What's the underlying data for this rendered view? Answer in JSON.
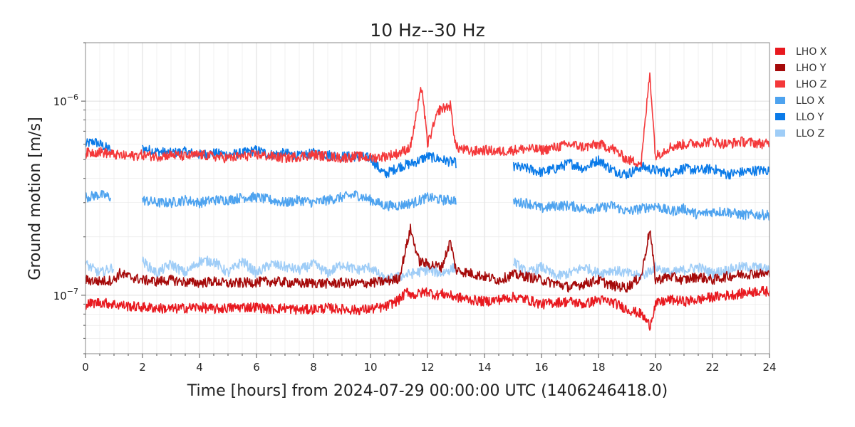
{
  "chart_data": {
    "type": "line",
    "title": "10 Hz--30 Hz",
    "xlabel": "Time [hours] from 2024-07-29 00:00:00 UTC (1406246418.0)",
    "ylabel": "Ground motion [m/s]",
    "xlim": [
      0,
      24
    ],
    "ylim": [
      5e-08,
      2e-06
    ],
    "yscale": "log",
    "grid": true,
    "legend_position": "right (outside plot, top)",
    "x_ticks": [
      "0",
      "2",
      "4",
      "6",
      "8",
      "10",
      "12",
      "14",
      "16",
      "18",
      "20",
      "22",
      "24"
    ],
    "y_ticks": [
      {
        "base": "10",
        "exp": "−6",
        "value": 1e-06
      },
      {
        "base": "10",
        "exp": "−7",
        "value": 1e-07
      }
    ],
    "series": [
      {
        "name": "LHO X",
        "color": "#e8191f",
        "x": [
          0,
          0.5,
          1,
          1.5,
          2,
          2.5,
          3,
          3.5,
          4,
          4.5,
          5,
          5.5,
          6,
          6.5,
          7,
          7.5,
          8,
          8.5,
          9,
          9.5,
          10,
          10.5,
          11,
          11.3,
          11.5,
          12,
          12.3,
          12.5,
          13,
          13.5,
          14,
          14.5,
          15,
          15.5,
          16,
          16.5,
          17,
          17.5,
          18,
          18.5,
          19,
          19.5,
          19.8,
          20,
          20.5,
          21,
          21.5,
          22,
          22.5,
          23,
          23.5,
          24
        ],
        "y": [
          9e-08,
          9.2e-08,
          9e-08,
          8.8e-08,
          8.7e-08,
          8.6e-08,
          8.5e-08,
          8.6e-08,
          8.7e-08,
          8.5e-08,
          8.6e-08,
          8.7e-08,
          8.7e-08,
          8.5e-08,
          8.6e-08,
          8.4e-08,
          8.5e-08,
          8.6e-08,
          8.5e-08,
          8.4e-08,
          8.5e-08,
          8.7e-08,
          9.5e-08,
          1.05e-07,
          1e-07,
          1.05e-07,
          1e-07,
          1.02e-07,
          9.8e-08,
          9.5e-08,
          9.3e-08,
          9.5e-08,
          9.8e-08,
          9.5e-08,
          9e-08,
          9.2e-08,
          9.3e-08,
          9e-08,
          9.5e-08,
          9.2e-08,
          8.5e-08,
          8e-08,
          7e-08,
          9e-08,
          9.5e-08,
          9.3e-08,
          9.5e-08,
          9.8e-08,
          1e-07,
          1.02e-07,
          1.05e-07,
          1.05e-07
        ]
      },
      {
        "name": "LHO Y",
        "color": "#a50a0a",
        "x": [
          0,
          0.5,
          1,
          1.2,
          1.5,
          2,
          2.5,
          3,
          3.5,
          4,
          4.5,
          5,
          5.5,
          6,
          6.5,
          7,
          7.5,
          8,
          8.5,
          9,
          9.5,
          10,
          10.5,
          11,
          11.4,
          11.7,
          12,
          12.5,
          12.8,
          13,
          13.5,
          14,
          14.5,
          15,
          15.5,
          16,
          16.5,
          17,
          17.5,
          18,
          18.5,
          19,
          19.5,
          19.8,
          20,
          20.5,
          21,
          21.5,
          22,
          22.5,
          23,
          23.5,
          24
        ],
        "y": [
          1.2e-07,
          1.18e-07,
          1.2e-07,
          1.3e-07,
          1.25e-07,
          1.2e-07,
          1.18e-07,
          1.2e-07,
          1.17e-07,
          1.16e-07,
          1.18e-07,
          1.15e-07,
          1.16e-07,
          1.17e-07,
          1.18e-07,
          1.17e-07,
          1.15e-07,
          1.16e-07,
          1.15e-07,
          1.16e-07,
          1.15e-07,
          1.16e-07,
          1.18e-07,
          1.22e-07,
          2.2e-07,
          1.5e-07,
          1.45e-07,
          1.4e-07,
          1.9e-07,
          1.35e-07,
          1.3e-07,
          1.25e-07,
          1.2e-07,
          1.28e-07,
          1.25e-07,
          1.2e-07,
          1.15e-07,
          1.1e-07,
          1.15e-07,
          1.2e-07,
          1.12e-07,
          1.1e-07,
          1.25e-07,
          2.2e-07,
          1.2e-07,
          1.25e-07,
          1.2e-07,
          1.25e-07,
          1.2e-07,
          1.25e-07,
          1.28e-07,
          1.3e-07,
          1.28e-07
        ]
      },
      {
        "name": "LHO Z",
        "color": "#f4383a",
        "x": [
          0,
          0.5,
          1,
          1.5,
          2,
          2.5,
          3,
          3.5,
          4,
          4.5,
          5,
          5.5,
          6,
          6.5,
          7,
          7.5,
          8,
          8.5,
          9,
          9.5,
          10,
          10.5,
          11,
          11.4,
          11.8,
          12,
          12.4,
          12.8,
          13,
          13.5,
          14,
          14.5,
          15,
          15.5,
          16,
          16.5,
          17,
          17.5,
          18,
          18.5,
          19,
          19.5,
          19.8,
          20,
          20.5,
          21,
          21.5,
          22,
          22.5,
          23,
          23.5,
          24
        ],
        "y": [
          5.4e-07,
          5.5e-07,
          5.3e-07,
          5.2e-07,
          5.3e-07,
          5.2e-07,
          5.3e-07,
          5.2e-07,
          5.3e-07,
          5.2e-07,
          5.1e-07,
          5.2e-07,
          5.3e-07,
          5.2e-07,
          5.1e-07,
          5.2e-07,
          5.3e-07,
          5.2e-07,
          5.1e-07,
          5.2e-07,
          5.1e-07,
          5.2e-07,
          5.4e-07,
          5.8e-07,
          1.2e-06,
          6e-07,
          9e-07,
          9.5e-07,
          5.8e-07,
          5.5e-07,
          5.6e-07,
          5.5e-07,
          5.6e-07,
          5.7e-07,
          5.6e-07,
          5.8e-07,
          6e-07,
          5.8e-07,
          6e-07,
          5.7e-07,
          5e-07,
          4.8e-07,
          1.4e-06,
          5.2e-07,
          5.8e-07,
          6e-07,
          6.1e-07,
          6.2e-07,
          6e-07,
          6.2e-07,
          6.1e-07,
          6e-07
        ]
      },
      {
        "name": "LLO X",
        "color": "#4ea3ef",
        "x": [
          0,
          0.5,
          0.9,
          2,
          2.5,
          3,
          3.5,
          4,
          4.5,
          5,
          5.5,
          6,
          6.5,
          7,
          7.5,
          8,
          8.5,
          9,
          9.5,
          10,
          10.5,
          11,
          11.5,
          12,
          12.5,
          13,
          15,
          15.5,
          16,
          16.5,
          17,
          17.5,
          18,
          18.5,
          19,
          19.5,
          20,
          20.5,
          21,
          21.5,
          22,
          22.5,
          23,
          23.5,
          24
        ],
        "y": [
          3.2e-07,
          3.3e-07,
          3.2e-07,
          3.1e-07,
          3e-07,
          3e-07,
          3.1e-07,
          3e-07,
          3.1e-07,
          3.1e-07,
          3.2e-07,
          3.2e-07,
          3.1e-07,
          3e-07,
          3.1e-07,
          3e-07,
          3.1e-07,
          3.2e-07,
          3.3e-07,
          3.1e-07,
          2.9e-07,
          2.9e-07,
          3e-07,
          3.2e-07,
          3.1e-07,
          3.1e-07,
          3e-07,
          3e-07,
          2.8e-07,
          2.9e-07,
          2.9e-07,
          2.8e-07,
          2.8e-07,
          2.9e-07,
          2.7e-07,
          2.8e-07,
          2.9e-07,
          2.7e-07,
          2.8e-07,
          2.6e-07,
          2.7e-07,
          2.7e-07,
          2.6e-07,
          2.6e-07,
          2.6e-07
        ]
      },
      {
        "name": "LLO Y",
        "color": "#0a7ae8",
        "x": [
          0,
          0.3,
          0.5,
          0.9,
          2,
          2.5,
          3,
          3.5,
          4,
          4.5,
          5,
          5.5,
          6,
          6.5,
          7,
          7.5,
          8,
          8.5,
          9,
          9.5,
          10,
          10.3,
          10.5,
          11,
          11.5,
          12,
          12.5,
          13,
          15,
          15.5,
          16,
          16.5,
          17,
          17.5,
          18,
          18.5,
          19,
          19.5,
          20,
          20.5,
          21,
          21.5,
          22,
          22.5,
          23,
          23.5,
          24
        ],
        "y": [
          6e-07,
          6.2e-07,
          6e-07,
          5.6e-07,
          5.7e-07,
          5.5e-07,
          5.4e-07,
          5.5e-07,
          5.3e-07,
          5.4e-07,
          5.3e-07,
          5.4e-07,
          5.6e-07,
          5.3e-07,
          5.4e-07,
          5.2e-07,
          5.4e-07,
          5.3e-07,
          5.2e-07,
          5.2e-07,
          5.1e-07,
          4.5e-07,
          4.2e-07,
          4.6e-07,
          4.8e-07,
          5.2e-07,
          5e-07,
          4.8e-07,
          4.6e-07,
          4.5e-07,
          4.3e-07,
          4.5e-07,
          4.8e-07,
          4.5e-07,
          5e-07,
          4.4e-07,
          4.2e-07,
          4.6e-07,
          4.4e-07,
          4.3e-07,
          4.5e-07,
          4.4e-07,
          4.5e-07,
          4.2e-07,
          4.3e-07,
          4.4e-07,
          4.4e-07
        ]
      },
      {
        "name": "LLO Z",
        "color": "#9fcdf7",
        "x": [
          0,
          0.5,
          1,
          2,
          2.5,
          3,
          3.5,
          4,
          4.5,
          5,
          5.5,
          6,
          6.5,
          7,
          7.5,
          8,
          8.5,
          9,
          9.5,
          10,
          10.5,
          11,
          11.5,
          12,
          12.5,
          13,
          15,
          15.5,
          16,
          16.5,
          17,
          17.5,
          18,
          18.5,
          19,
          19.5,
          20,
          20.5,
          21,
          21.5,
          22,
          22.5,
          23,
          23.5,
          24
        ],
        "y": [
          1.45e-07,
          1.3e-07,
          1.4e-07,
          1.5e-07,
          1.3e-07,
          1.45e-07,
          1.3e-07,
          1.5e-07,
          1.5e-07,
          1.3e-07,
          1.5e-07,
          1.3e-07,
          1.45e-07,
          1.4e-07,
          1.35e-07,
          1.45e-07,
          1.3e-07,
          1.45e-07,
          1.35e-07,
          1.4e-07,
          1.2e-07,
          1.25e-07,
          1.3e-07,
          1.35e-07,
          1.3e-07,
          1.4e-07,
          1.5e-07,
          1.3e-07,
          1.4e-07,
          1.25e-07,
          1.3e-07,
          1.4e-07,
          1.3e-07,
          1.35e-07,
          1.3e-07,
          1.25e-07,
          1.4e-07,
          1.3e-07,
          1.35e-07,
          1.4e-07,
          1.3e-07,
          1.35e-07,
          1.4e-07,
          1.4e-07,
          1.35e-07
        ]
      }
    ]
  }
}
